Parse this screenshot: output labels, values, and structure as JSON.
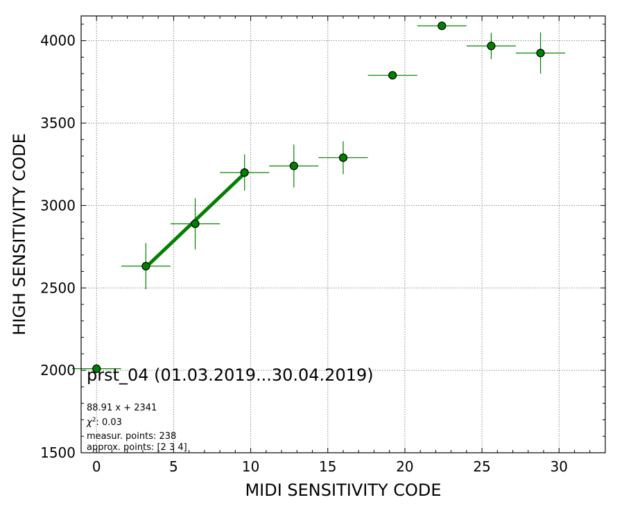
{
  "chart_data": {
    "type": "scatter",
    "title": "",
    "xlabel": "MIDI SENSITIVITY CODE",
    "ylabel": "HIGH SENSITIVITY CODE",
    "xlim": [
      -1,
      33
    ],
    "ylim": [
      1500,
      4150
    ],
    "x_ticks": [
      0,
      5,
      10,
      15,
      20,
      25,
      30
    ],
    "y_ticks": [
      1500,
      2000,
      2500,
      3000,
      3500,
      4000
    ],
    "grid": true,
    "marker_color": "#008000",
    "edge_color": "#000000",
    "points": [
      {
        "x": 0.0,
        "y": 2010,
        "xerr": 1.6,
        "yerr": 0
      },
      {
        "x": 3.2,
        "y": 2632,
        "xerr": 1.6,
        "yerr": 140
      },
      {
        "x": 6.4,
        "y": 2889,
        "xerr": 1.6,
        "yerr": 155
      },
      {
        "x": 9.6,
        "y": 3200,
        "xerr": 1.6,
        "yerr": 110
      },
      {
        "x": 12.8,
        "y": 3240,
        "xerr": 1.6,
        "yerr": 130
      },
      {
        "x": 16.0,
        "y": 3290,
        "xerr": 1.6,
        "yerr": 100
      },
      {
        "x": 19.2,
        "y": 3790,
        "xerr": 1.6,
        "yerr": 0
      },
      {
        "x": 22.4,
        "y": 4090,
        "xerr": 1.6,
        "yerr": 0
      },
      {
        "x": 25.6,
        "y": 3968,
        "xerr": 1.6,
        "yerr": 80
      },
      {
        "x": 28.8,
        "y": 3925,
        "xerr": 1.6,
        "yerr": 125
      }
    ],
    "fit_line": {
      "slope": 88.91,
      "intercept": 2341,
      "x_range": [
        3.2,
        9.6
      ],
      "color": "#008000"
    },
    "annotations": {
      "dataset": "prst_04 (01.03.2019...30.04.2019)",
      "equation": "88.91 x + 2341",
      "chi2": ": 0.03",
      "measured": "measur. points: 238",
      "approx": "approx. points: [2 3 4]"
    }
  }
}
